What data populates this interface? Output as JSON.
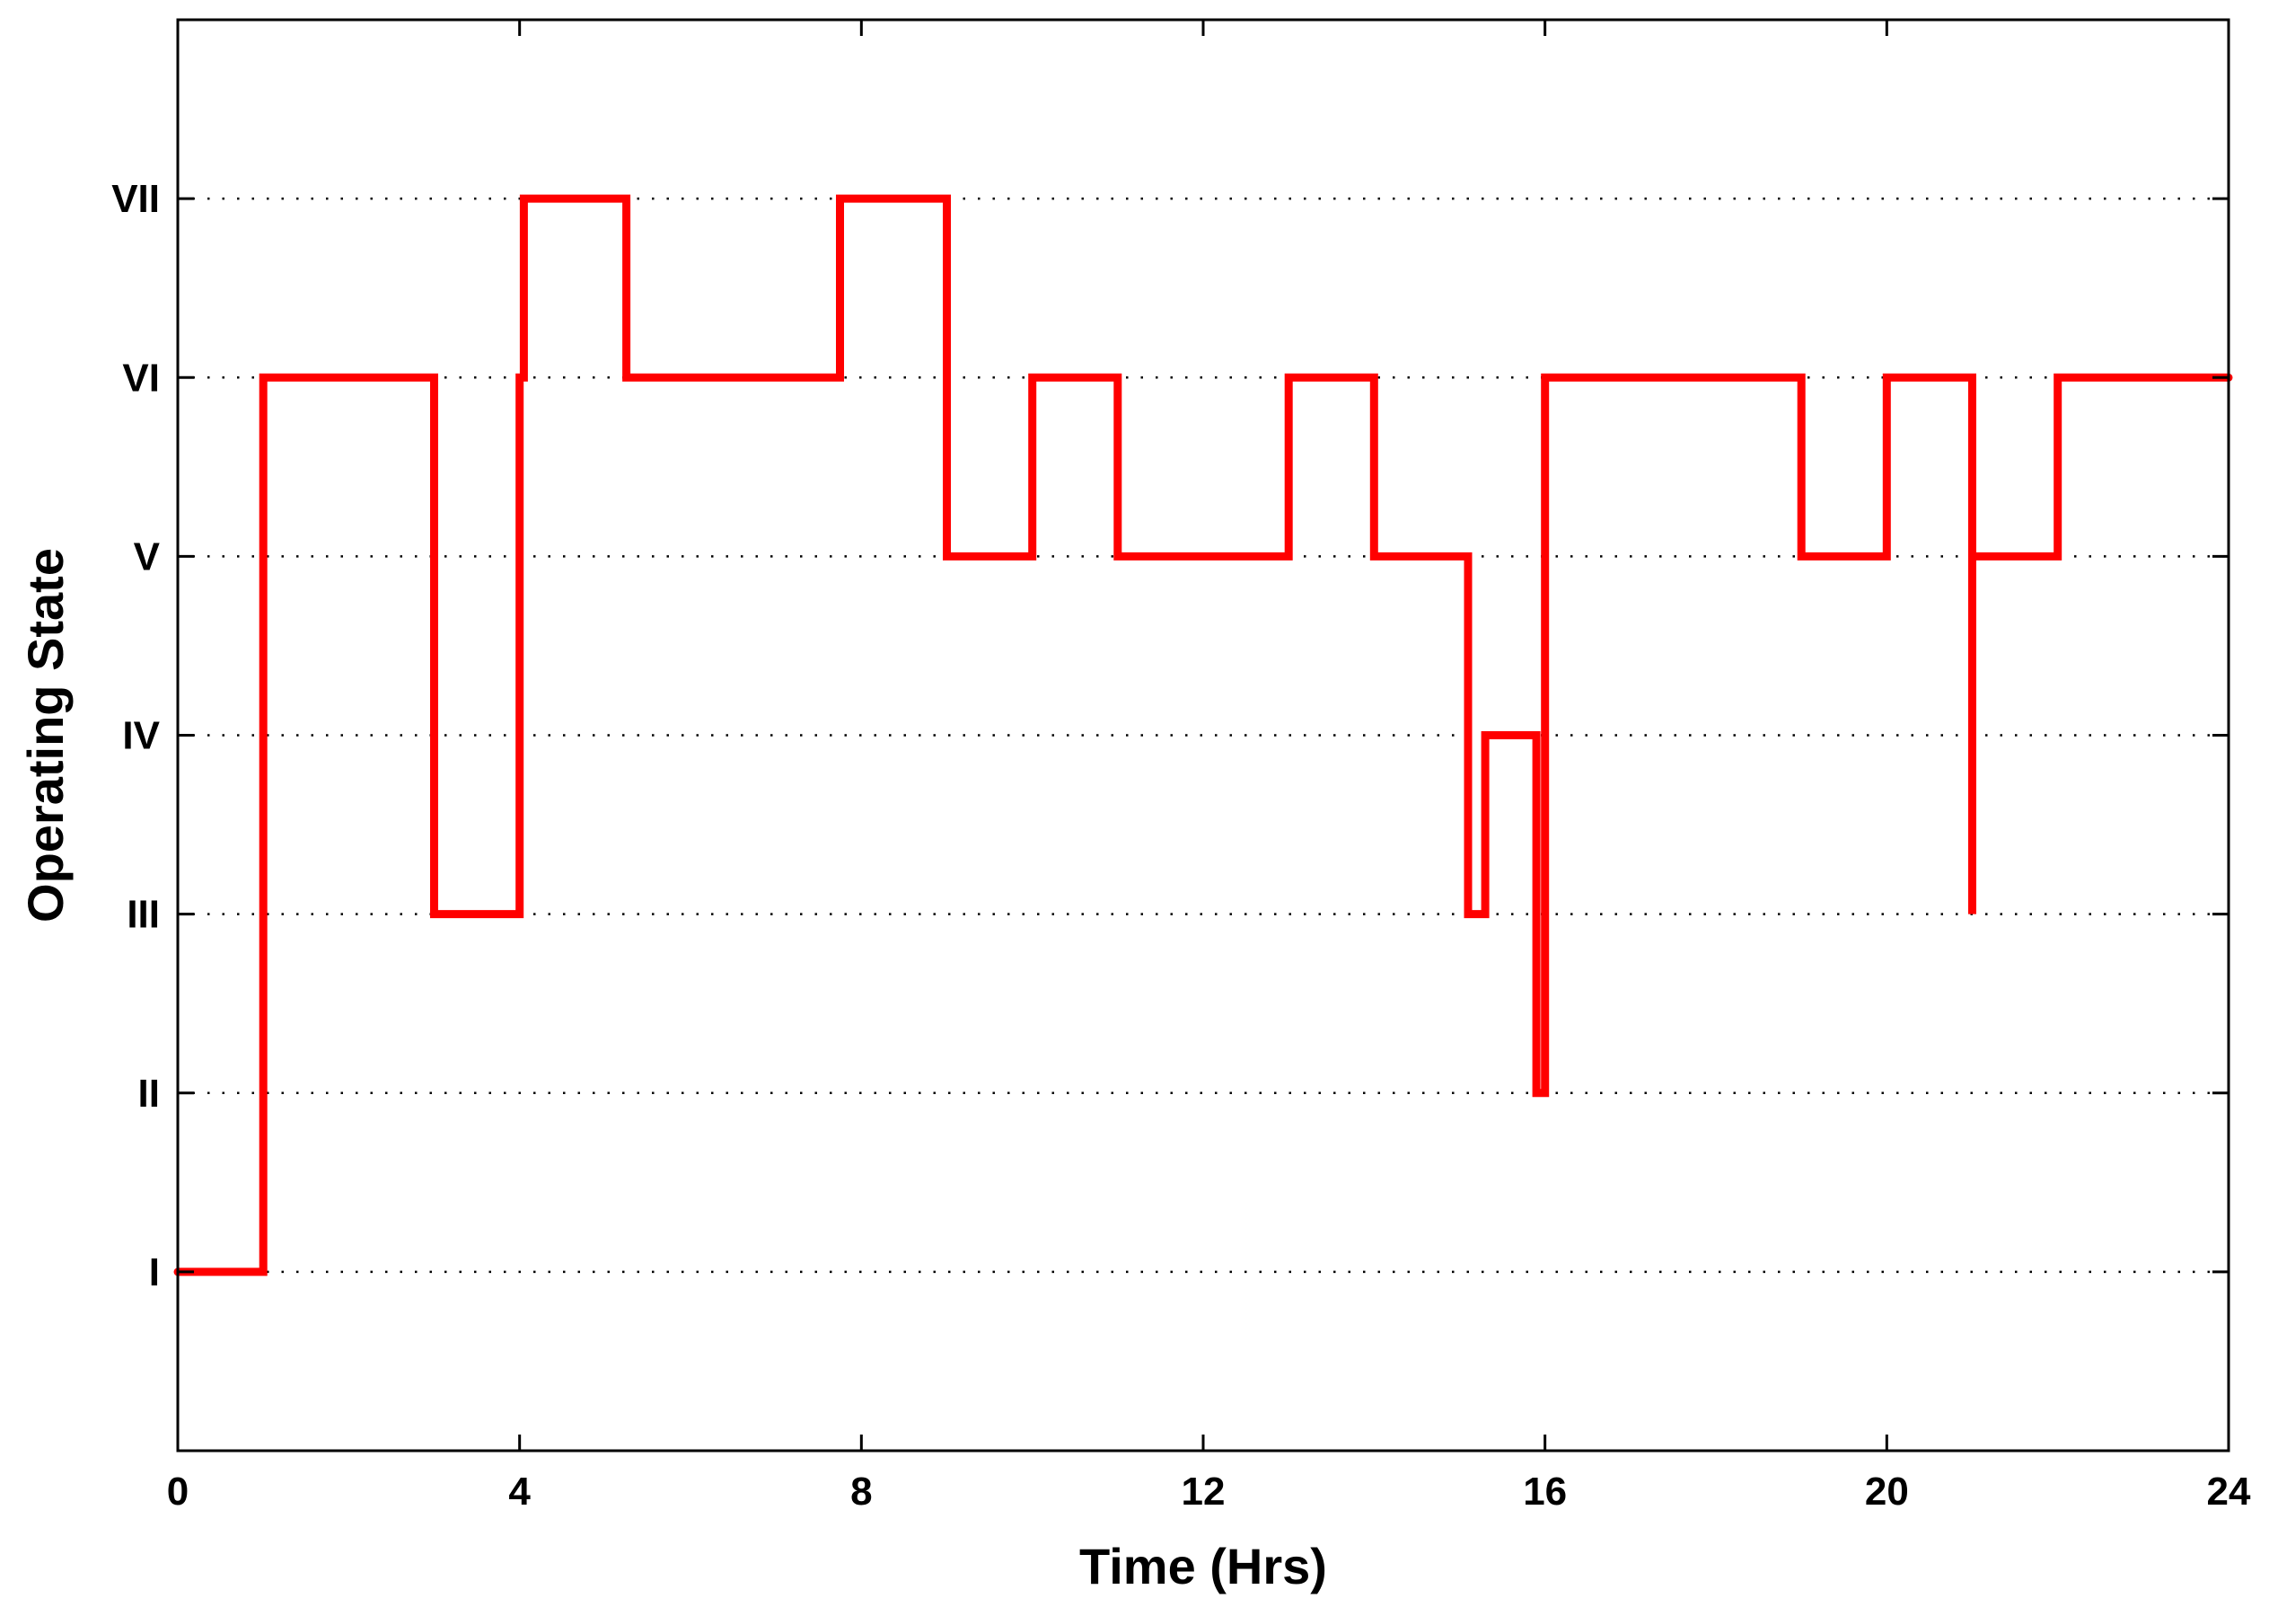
{
  "chart_data": {
    "type": "line",
    "step": true,
    "title": "",
    "xlabel": "Time (Hrs)",
    "ylabel": "Operating State",
    "xlim": [
      0,
      24
    ],
    "ylim": [
      0,
      8
    ],
    "xticks": [
      0,
      4,
      8,
      12,
      16,
      20,
      24
    ],
    "xtick_labels": [
      "0",
      "4",
      "8",
      "12",
      "16",
      "20",
      "24"
    ],
    "yticks": [
      1,
      2,
      3,
      4,
      5,
      6,
      7
    ],
    "ytick_labels": [
      "I",
      "II",
      "III",
      "IV",
      "V",
      "VI",
      "VII"
    ],
    "grid": "horizontal dotted",
    "line_color": "#ff0000",
    "series": [
      {
        "x": [
          0,
          1,
          1,
          3,
          3,
          4,
          4,
          4.05,
          4.05,
          5.25,
          5.25,
          7.75,
          7.75,
          9,
          9,
          10,
          10,
          11,
          11,
          13,
          13,
          14,
          14,
          15.1,
          15.1,
          15.3,
          15.3,
          15.9,
          15.9,
          16,
          16,
          19,
          19,
          20,
          20,
          21,
          21,
          21,
          22,
          22,
          24
        ],
        "y": [
          1,
          1,
          6,
          6,
          3,
          3,
          6,
          6,
          7,
          7,
          6,
          6,
          7,
          7,
          5,
          5,
          6,
          6,
          5,
          5,
          6,
          6,
          5,
          5,
          3,
          3,
          4,
          4,
          2,
          2,
          6,
          6,
          5,
          5,
          6,
          6,
          3,
          5,
          5,
          6,
          6
        ]
      }
    ]
  }
}
